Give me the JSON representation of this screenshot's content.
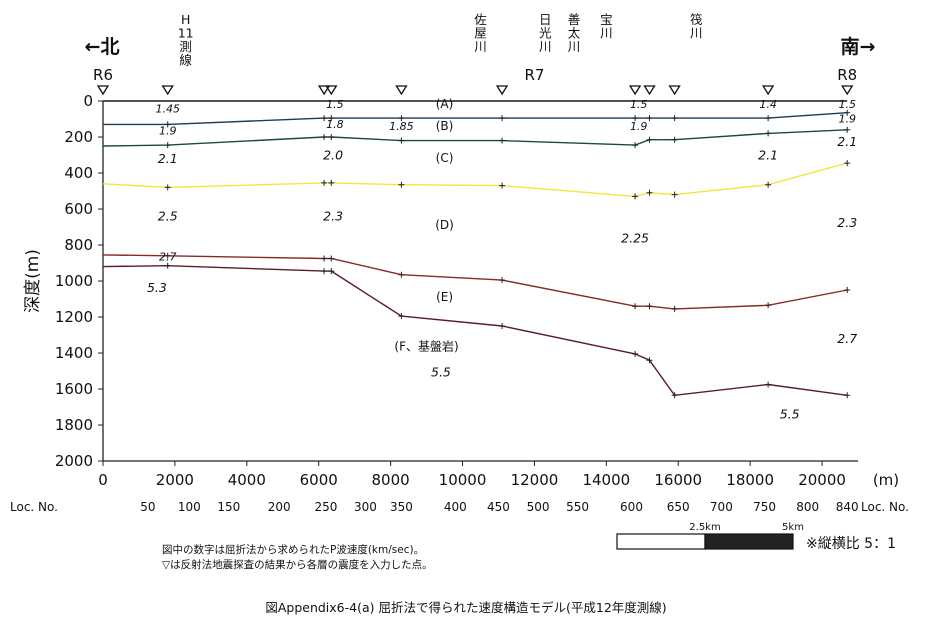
{
  "chart_data": {
    "type": "line",
    "caption": "図Appendix6-4(a)  屈折法で得られた速度構造モデル(平成12年度測線)",
    "ylabel": "深度(m)",
    "xunit": "(m)",
    "xlim": [
      0,
      21000
    ],
    "ylim": [
      0,
      2000
    ],
    "y_inverted": true,
    "x_ticks": [
      "0",
      "2000",
      "4000",
      "6000",
      "8000",
      "10000",
      "12000",
      "14000",
      "16000",
      "18000",
      "20000"
    ],
    "y_ticks": [
      "0",
      "200",
      "400",
      "600",
      "800",
      "1000",
      "1200",
      "1400",
      "1600",
      "1800",
      "2000"
    ],
    "direction_left": "←北",
    "direction_right": "南→",
    "points": [
      {
        "label": "R6",
        "x": 0
      },
      {
        "label": "R7",
        "x": 12000
      },
      {
        "label": "R8",
        "x": 20700
      }
    ],
    "rivers": [
      {
        "label": "H\n11\n測\n線",
        "x": 2300
      },
      {
        "label": "佐\n屋\n川",
        "x": 10500
      },
      {
        "label": "日\n光\n川",
        "x": 12300
      },
      {
        "label": "善\n太\n川",
        "x": 13100
      },
      {
        "label": "宝\n川",
        "x": 14000
      },
      {
        "label": "筏\n川",
        "x": 16500
      }
    ],
    "reflection_markers_x": [
      0,
      1800,
      6150,
      6350,
      8300,
      11100,
      14800,
      15200,
      15900,
      18500,
      20700
    ],
    "series": [
      {
        "name": "ground surface",
        "color": "#1a1a1a",
        "points": [
          [
            0,
            0
          ],
          [
            6300,
            0
          ],
          [
            20700,
            0
          ]
        ]
      },
      {
        "name": "A/B boundary",
        "color": "#1c3d55",
        "points": [
          [
            0,
            130
          ],
          [
            1800,
            130
          ],
          [
            6150,
            95
          ],
          [
            6350,
            95
          ],
          [
            8300,
            95
          ],
          [
            11100,
            95
          ],
          [
            14800,
            95
          ],
          [
            15200,
            95
          ],
          [
            15900,
            95
          ],
          [
            18500,
            95
          ],
          [
            20700,
            65
          ]
        ]
      },
      {
        "name": "B/C boundary",
        "color": "#1a4a3a",
        "points": [
          [
            0,
            250
          ],
          [
            1800,
            245
          ],
          [
            6150,
            200
          ],
          [
            6350,
            200
          ],
          [
            8300,
            220
          ],
          [
            11100,
            220
          ],
          [
            14800,
            245
          ],
          [
            15200,
            215
          ],
          [
            15900,
            215
          ],
          [
            18500,
            180
          ],
          [
            20700,
            160
          ]
        ]
      },
      {
        "name": "C/D boundary",
        "color": "#f0e63c",
        "points": [
          [
            0,
            460
          ],
          [
            1800,
            480
          ],
          [
            6150,
            455
          ],
          [
            6350,
            455
          ],
          [
            8300,
            465
          ],
          [
            11100,
            470
          ],
          [
            14800,
            530
          ],
          [
            15200,
            510
          ],
          [
            15900,
            520
          ],
          [
            18500,
            465
          ],
          [
            20700,
            345
          ]
        ]
      },
      {
        "name": "D/E boundary",
        "color": "#8a2828",
        "points": [
          [
            0,
            855
          ],
          [
            1800,
            860
          ],
          [
            6150,
            875
          ],
          [
            6350,
            875
          ],
          [
            8300,
            965
          ],
          [
            11100,
            995
          ],
          [
            14800,
            1140
          ],
          [
            15200,
            1140
          ],
          [
            15900,
            1155
          ],
          [
            18500,
            1135
          ],
          [
            20700,
            1050
          ]
        ]
      },
      {
        "name": "E/F boundary",
        "color": "#5a1c2a",
        "points": [
          [
            0,
            920
          ],
          [
            1800,
            915
          ],
          [
            6150,
            945
          ],
          [
            6350,
            945
          ],
          [
            8300,
            1195
          ],
          [
            11100,
            1250
          ],
          [
            14800,
            1405
          ],
          [
            15200,
            1440
          ],
          [
            15900,
            1635
          ],
          [
            18500,
            1575
          ],
          [
            20700,
            1635
          ]
        ]
      }
    ],
    "layer_labels": [
      {
        "text": "(A)",
        "x": 9500,
        "y": 40
      },
      {
        "text": "(B)",
        "x": 9500,
        "y": 160
      },
      {
        "text": "(C)",
        "x": 9500,
        "y": 340
      },
      {
        "text": "(D)",
        "x": 9500,
        "y": 710
      },
      {
        "text": "(E)",
        "x": 9500,
        "y": 1110
      },
      {
        "text": "(F、基盤岩)",
        "x": 9000,
        "y": 1385
      }
    ],
    "velocity_labels": [
      {
        "text": "1.45",
        "x": 1800,
        "y": 65,
        "size": "s"
      },
      {
        "text": "1.5",
        "x": 6450,
        "y": 40,
        "size": "s"
      },
      {
        "text": "1.5",
        "x": 14900,
        "y": 40,
        "size": "s"
      },
      {
        "text": "1.4",
        "x": 18500,
        "y": 40,
        "size": "s"
      },
      {
        "text": "1.5",
        "x": 20700,
        "y": 40,
        "size": "s"
      },
      {
        "text": "1.9",
        "x": 1800,
        "y": 185,
        "size": "s"
      },
      {
        "text": "1.8",
        "x": 6450,
        "y": 150,
        "size": "s"
      },
      {
        "text": "1.85",
        "x": 8300,
        "y": 160,
        "size": "s"
      },
      {
        "text": "1.9",
        "x": 14900,
        "y": 160,
        "size": "s"
      },
      {
        "text": "1.9",
        "x": 20700,
        "y": 120,
        "size": "s"
      },
      {
        "text": "2.1",
        "x": 1800,
        "y": 345,
        "size": "m"
      },
      {
        "text": "2.0",
        "x": 6400,
        "y": 325,
        "size": "m"
      },
      {
        "text": "2.1",
        "x": 18500,
        "y": 325,
        "size": "m"
      },
      {
        "text": "2.1",
        "x": 20700,
        "y": 250,
        "size": "m"
      },
      {
        "text": "2.5",
        "x": 1800,
        "y": 665,
        "size": "m"
      },
      {
        "text": "2.3",
        "x": 6400,
        "y": 665,
        "size": "m"
      },
      {
        "text": "2.25",
        "x": 14800,
        "y": 785,
        "size": "m"
      },
      {
        "text": "2.3",
        "x": 20700,
        "y": 700,
        "size": "m"
      },
      {
        "text": "2.7",
        "x": 1800,
        "y": 885,
        "size": "s"
      },
      {
        "text": "5.3",
        "x": 1500,
        "y": 1060,
        "size": "m"
      },
      {
        "text": "5.5",
        "x": 9400,
        "y": 1530,
        "size": "m"
      },
      {
        "text": "2.7",
        "x": 20700,
        "y": 1345,
        "size": "m"
      },
      {
        "text": "5.5",
        "x": 19100,
        "y": 1765,
        "size": "m"
      }
    ],
    "loc_label": "Loc. No.",
    "loc_ticks": [
      {
        "label": "50",
        "x": 1250
      },
      {
        "label": "100",
        "x": 2400
      },
      {
        "label": "150",
        "x": 3500
      },
      {
        "label": "200",
        "x": 4900
      },
      {
        "label": "250",
        "x": 6200
      },
      {
        "label": "300",
        "x": 7300
      },
      {
        "label": "350",
        "x": 8300
      },
      {
        "label": "400",
        "x": 9800
      },
      {
        "label": "450",
        "x": 11000
      },
      {
        "label": "500",
        "x": 12100
      },
      {
        "label": "550",
        "x": 13200
      },
      {
        "label": "600",
        "x": 14700
      },
      {
        "label": "650",
        "x": 16000
      },
      {
        "label": "700",
        "x": 17200
      },
      {
        "label": "750",
        "x": 18400
      },
      {
        "label": "800",
        "x": 19600
      },
      {
        "label": "840",
        "x": 20700
      }
    ],
    "scale_bar_labels": [
      "2.5km",
      "5km"
    ],
    "aspect_note": "※縦横比  5：1",
    "notes": [
      "図中の数字は屈折法から求められたP波速度(km/sec)。",
      "▽は反射法地震探査の結果から各層の震度を入力した点。"
    ]
  }
}
